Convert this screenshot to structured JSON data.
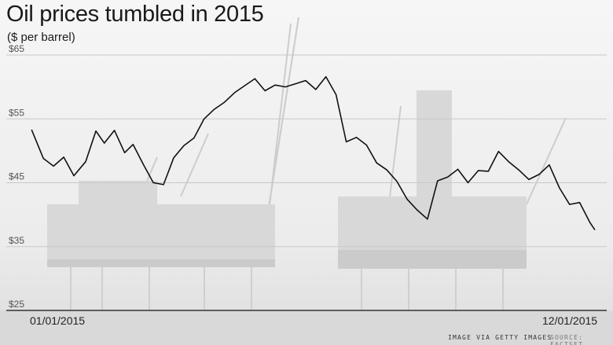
{
  "title": "Oil prices tumbled in 2015",
  "subtitle": "($ per barrel)",
  "credits": {
    "image": "IMAGE VIA GETTY IMAGES",
    "source": "SOURCE: FACTSET"
  },
  "colors": {
    "line": "#111111",
    "grid": "#c8c8c8",
    "baseline": "#333333",
    "background": "#f2f2f2",
    "rig": "#c9c9c9"
  },
  "background_image": "offshore oil platform",
  "chart_data": {
    "type": "line",
    "title": "Oil prices tumbled in 2015",
    "subtitle": "($ per barrel)",
    "xlabel": "",
    "ylabel": "($ per barrel)",
    "ylim": [
      25,
      65
    ],
    "yticks": [
      "$25",
      "$35",
      "$45",
      "$55",
      "$65"
    ],
    "ytick_values": [
      25,
      35,
      45,
      55,
      65
    ],
    "x_start_label": "01/01/2015",
    "x_end_label": "12/01/2015",
    "x_range": [
      "2015-01-01",
      "2015-12-01"
    ],
    "grid": true,
    "legend": "none",
    "series": [
      {
        "x": [
          "2015-01-02",
          "2015-01-09",
          "2015-01-15",
          "2015-01-21",
          "2015-01-27",
          "2015-02-03",
          "2015-02-09",
          "2015-02-14",
          "2015-02-20",
          "2015-02-26",
          "2015-03-03",
          "2015-03-09",
          "2015-03-15",
          "2015-03-21",
          "2015-03-27",
          "2015-04-02",
          "2015-04-08",
          "2015-04-14",
          "2015-04-20",
          "2015-04-26",
          "2015-05-02",
          "2015-05-08",
          "2015-05-14",
          "2015-05-20",
          "2015-05-26",
          "2015-06-01",
          "2015-06-07",
          "2015-06-13",
          "2015-06-19",
          "2015-06-25",
          "2015-07-01",
          "2015-07-07",
          "2015-07-13",
          "2015-07-19",
          "2015-07-25",
          "2015-07-31",
          "2015-08-06",
          "2015-08-12",
          "2015-08-18",
          "2015-08-24",
          "2015-08-30",
          "2015-09-05",
          "2015-09-11",
          "2015-09-17",
          "2015-09-23",
          "2015-09-29",
          "2015-10-05",
          "2015-10-11",
          "2015-10-17",
          "2015-10-23",
          "2015-10-29",
          "2015-11-04",
          "2015-11-10",
          "2015-11-16",
          "2015-11-22",
          "2015-11-28",
          "2015-12-01"
        ],
        "y": [
          53.3,
          48.8,
          47.6,
          49.0,
          46.1,
          48.3,
          53.1,
          51.2,
          53.2,
          49.7,
          51.0,
          47.9,
          45.0,
          44.7,
          48.9,
          50.8,
          52.0,
          55.0,
          56.5,
          57.6,
          59.1,
          60.2,
          61.3,
          59.4,
          60.3,
          60.0,
          60.5,
          61.0,
          59.6,
          61.6,
          58.8,
          51.4,
          52.1,
          50.9,
          48.1,
          47.0,
          45.2,
          42.4,
          40.7,
          39.3,
          45.3,
          45.9,
          47.1,
          45.0,
          46.9,
          46.8,
          49.9,
          48.3,
          47.0,
          45.5,
          46.3,
          47.8,
          44.2,
          41.6,
          41.9,
          38.8,
          37.6
        ]
      }
    ]
  }
}
